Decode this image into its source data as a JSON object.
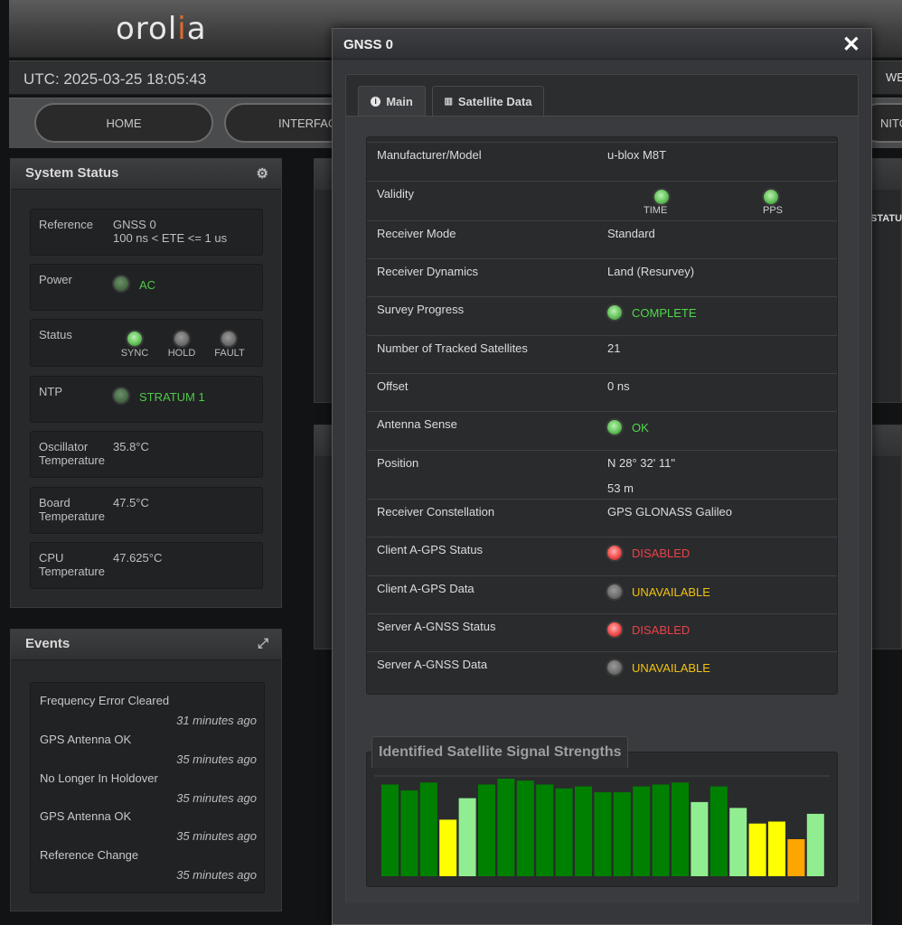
{
  "header": {
    "logo_text_main": "orol",
    "logo_text_accent": "i",
    "logo_text_end": "a",
    "utc": "UTC: 2025-03-25 18:05:43",
    "right_text": "WE"
  },
  "nav": {
    "home": "HOME",
    "interfaces": "INTERFAC",
    "monitor": "NITOR"
  },
  "system_status": {
    "title": "System Status",
    "gear_icon": "gear-icon",
    "reference_label": "Reference",
    "reference_value_1": "GNSS 0",
    "reference_value_2": "100 ns < ETE <= 1 us",
    "power_label": "Power",
    "power_value": "AC",
    "status_label": "Status",
    "status_sync": "SYNC",
    "status_hold": "HOLD",
    "status_fault": "FAULT",
    "ntp_label": "NTP",
    "ntp_value": "STRATUM 1",
    "osc_label_1": "Oscillator",
    "osc_label_2": "Temperature",
    "osc_value": "35.8°C",
    "board_label_1": "Board",
    "board_label_2": "Temperature",
    "board_value": "47.5°C",
    "cpu_label_1": "CPU",
    "cpu_label_2": "Temperature",
    "cpu_value": "47.625°C"
  },
  "events": {
    "title": "Events",
    "items": [
      {
        "text": "Frequency Error Cleared",
        "when": "31 minutes ago"
      },
      {
        "text": "GPS Antenna OK",
        "when": "35 minutes ago"
      },
      {
        "text": "No Longer In Holdover",
        "when": "35 minutes ago"
      },
      {
        "text": "GPS Antenna OK",
        "when": "35 minutes ago"
      },
      {
        "text": "Reference Change",
        "when": "35 minutes ago"
      }
    ]
  },
  "background": {
    "status_header": "STATU"
  },
  "modal": {
    "title": "GNSS 0",
    "tab_main": "Main",
    "tab_satellite": "Satellite Data",
    "rows": {
      "manufacturer_label": "Manufacturer/Model",
      "manufacturer_value": "u-blox M8T",
      "validity_label": "Validity",
      "validity_time": "TIME",
      "validity_pps": "PPS",
      "receiver_mode_label": "Receiver Mode",
      "receiver_mode_value": "Standard",
      "receiver_dynamics_label": "Receiver Dynamics",
      "receiver_dynamics_value": "Land (Resurvey)",
      "survey_label": "Survey Progress",
      "survey_value": "COMPLETE",
      "tracked_label": "Number of Tracked Satellites",
      "tracked_value": "21",
      "offset_label": "Offset",
      "offset_value": "0 ns",
      "antenna_label": "Antenna Sense",
      "antenna_value": "OK",
      "position_label": "Position",
      "position_value_1": "N 28° 32' 11\"",
      "position_value_2": "53 m",
      "constellation_label": "Receiver Constellation",
      "constellation_value": "GPS GLONASS Galileo",
      "client_agps_status_label": "Client A-GPS Status",
      "client_agps_status_value": "DISABLED",
      "client_agps_data_label": "Client A-GPS Data",
      "client_agps_data_value": "UNAVAILABLE",
      "server_agnss_status_label": "Server A-GNSS Status",
      "server_agnss_status_value": "DISABLED",
      "server_agnss_data_label": "Server A-GNSS Data",
      "server_agnss_data_value": "UNAVAILABLE"
    },
    "signal_title": "Identified Satellite Signal Strengths"
  },
  "colors": {
    "dark_green": "#008000",
    "light_green": "#90ee90",
    "yellow": "#ffff00",
    "orange": "#ffa500"
  },
  "chart_data": {
    "type": "bar",
    "title": "Identified Satellite Signal Strengths",
    "ylim": [
      0,
      50
    ],
    "values": [
      47,
      44,
      48,
      29,
      40,
      47,
      50,
      49,
      47,
      45,
      46,
      43,
      43,
      46,
      47,
      48,
      38,
      46,
      35,
      27,
      28,
      19,
      32
    ],
    "bar_colors": [
      "#008000",
      "#008000",
      "#008000",
      "#ffff00",
      "#90ee90",
      "#008000",
      "#008000",
      "#008000",
      "#008000",
      "#008000",
      "#008000",
      "#008000",
      "#008000",
      "#008000",
      "#008000",
      "#008000",
      "#90ee90",
      "#008000",
      "#90ee90",
      "#ffff00",
      "#ffff00",
      "#ffa500",
      "#90ee90"
    ]
  }
}
